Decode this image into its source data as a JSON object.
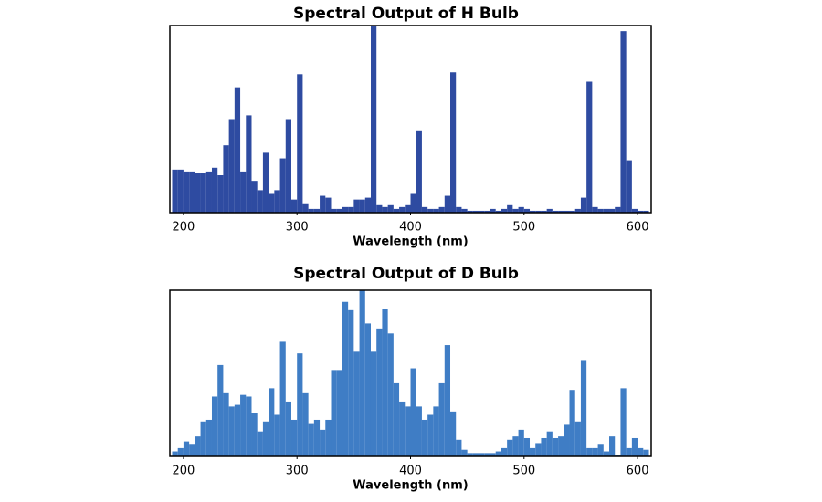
{
  "chart_data": [
    {
      "type": "histogram",
      "title": "Spectral Output of H Bulb",
      "xlabel": "Wavelength (nm)",
      "color": "#2e4ba1",
      "bins": [
        190,
        195,
        200,
        205,
        210,
        215,
        220,
        225,
        230,
        235,
        240,
        245,
        250,
        255,
        260,
        265,
        270,
        275,
        280,
        285,
        290,
        295,
        300,
        305,
        310,
        315,
        320,
        325,
        330,
        335,
        340,
        345,
        350,
        355,
        360,
        365,
        370,
        375,
        380,
        385,
        390,
        395,
        400,
        405,
        410,
        415,
        420,
        425,
        430,
        435,
        440,
        445,
        450,
        455,
        460,
        465,
        470,
        475,
        480,
        485,
        490,
        495,
        500,
        505,
        510,
        515,
        520,
        525,
        530,
        535,
        540,
        545,
        550,
        555,
        560,
        565,
        570,
        575,
        580,
        585,
        590,
        595,
        600,
        605,
        610
      ],
      "counts": [
        23,
        23,
        22,
        22,
        21,
        21,
        22,
        24,
        20,
        36,
        50,
        67,
        22,
        52,
        17,
        12,
        32,
        10,
        12,
        29,
        50,
        7,
        74,
        5,
        2,
        2,
        9,
        8,
        2,
        2,
        3,
        3,
        7,
        7,
        8,
        100,
        4,
        3,
        4,
        2,
        3,
        4,
        10,
        44,
        3,
        2,
        2,
        3,
        9,
        75,
        3,
        2,
        1,
        1,
        1,
        1,
        2,
        1,
        2,
        4,
        2,
        3,
        2,
        1,
        1,
        1,
        2,
        1,
        1,
        1,
        1,
        2,
        8,
        70,
        3,
        2,
        2,
        2,
        3,
        97,
        28,
        2,
        1,
        1
      ],
      "xlim": [
        188,
        612
      ],
      "xticks": [
        200,
        300,
        400,
        500,
        600
      ],
      "ylim": [
        0,
        100
      ]
    },
    {
      "type": "histogram",
      "title": "Spectral Output of D Bulb",
      "xlabel": "Wavelength (nm)",
      "color": "#3f7dc5",
      "bins": [
        190,
        195,
        200,
        205,
        210,
        215,
        220,
        225,
        230,
        235,
        240,
        245,
        250,
        255,
        260,
        265,
        270,
        275,
        280,
        285,
        290,
        295,
        300,
        305,
        310,
        315,
        320,
        325,
        330,
        335,
        340,
        345,
        350,
        355,
        360,
        365,
        370,
        375,
        380,
        385,
        390,
        395,
        400,
        405,
        410,
        415,
        420,
        425,
        430,
        435,
        440,
        445,
        450,
        455,
        460,
        465,
        470,
        475,
        480,
        485,
        490,
        495,
        500,
        505,
        510,
        515,
        520,
        525,
        530,
        535,
        540,
        545,
        550,
        555,
        560,
        565,
        570,
        575,
        580,
        585,
        590,
        595,
        600,
        605,
        610
      ],
      "counts": [
        3,
        5,
        9,
        7,
        12,
        21,
        22,
        36,
        55,
        38,
        30,
        31,
        37,
        36,
        26,
        15,
        21,
        41,
        25,
        69,
        33,
        22,
        62,
        38,
        20,
        22,
        16,
        22,
        52,
        52,
        93,
        88,
        63,
        100,
        80,
        63,
        77,
        89,
        74,
        44,
        33,
        30,
        53,
        30,
        22,
        25,
        30,
        44,
        67,
        27,
        10,
        4,
        2,
        2,
        2,
        2,
        2,
        3,
        5,
        10,
        12,
        16,
        11,
        5,
        8,
        11,
        15,
        11,
        12,
        19,
        40,
        21,
        58,
        5,
        5,
        7,
        3,
        12,
        1,
        41,
        5,
        11,
        5,
        4
      ],
      "xlim": [
        188,
        612
      ],
      "xticks": [
        200,
        300,
        400,
        500,
        600
      ],
      "ylim": [
        0,
        100
      ]
    }
  ]
}
